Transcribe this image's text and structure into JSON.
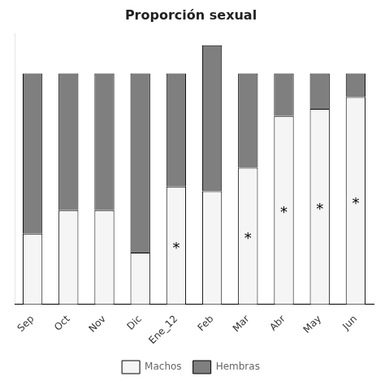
{
  "chart_data": {
    "type": "bar",
    "title": "Proporción sexual",
    "categories": [
      "Sep",
      "Oct",
      "Nov",
      "Dic",
      "Ene_12",
      "Feb",
      "Mar",
      "Abr",
      "May",
      "Jun"
    ],
    "series": [
      {
        "name": "Machos",
        "color": "#f5f5f5",
        "values": [
          0.3,
          0.4,
          0.4,
          0.22,
          0.5,
          0.48,
          0.58,
          0.8,
          0.83,
          0.88
        ]
      },
      {
        "name": "Hembras",
        "color": "#7f7f7f",
        "values": [
          0.68,
          0.58,
          0.58,
          0.76,
          0.48,
          0.62,
          0.4,
          0.18,
          0.15,
          0.1
        ]
      }
    ],
    "stacked": true,
    "ylim": [
      0,
      1.15
    ],
    "grid": false,
    "legend": "bottom",
    "tick_labels": "x",
    "annotations": [
      {
        "x": "Ene_12",
        "text": "*"
      },
      {
        "x": "Mar",
        "text": "*"
      },
      {
        "x": "Abr",
        "text": "*"
      },
      {
        "x": "May",
        "text": "*"
      },
      {
        "x": "Jun",
        "text": "*"
      }
    ]
  }
}
